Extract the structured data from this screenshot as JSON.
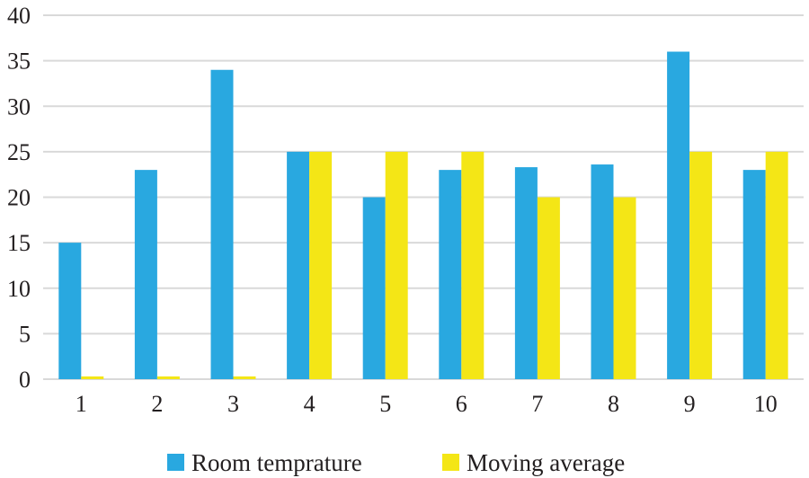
{
  "chart_data": {
    "type": "bar",
    "categories": [
      "1",
      "2",
      "3",
      "4",
      "5",
      "6",
      "7",
      "8",
      "9",
      "10"
    ],
    "series": [
      {
        "name": "Room temprature",
        "color": "#29a8e0",
        "values": [
          15,
          23,
          34,
          25,
          20,
          23,
          23.3,
          23.6,
          36,
          23
        ]
      },
      {
        "name": "Moving average",
        "color": "#f4e616",
        "values": [
          0.3,
          0.3,
          0.3,
          25,
          25,
          25,
          20,
          20,
          25,
          25
        ]
      }
    ],
    "yticks": [
      "0",
      "5",
      "10",
      "15",
      "20",
      "25",
      "30",
      "35",
      "40"
    ],
    "ylim": [
      0,
      40
    ],
    "grid": true,
    "legend_position": "bottom"
  }
}
